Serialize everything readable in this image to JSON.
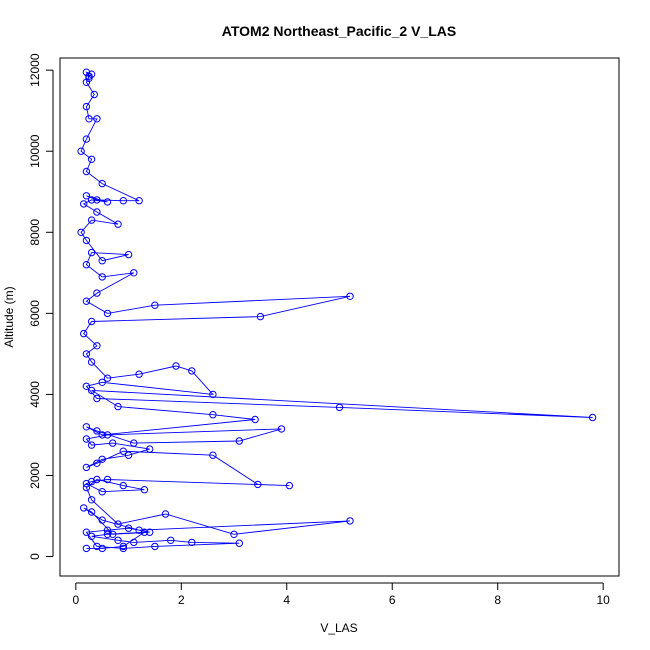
{
  "chart_data": {
    "type": "line",
    "title": "ATOM2 Northeast_Pacific_2 V_LAS",
    "xlabel": "V_LAS",
    "ylabel": "Altitude (m)",
    "xlim": [
      -0.3,
      10.3
    ],
    "ylim": [
      -480,
      12300
    ],
    "x_ticks": [
      0,
      2,
      4,
      6,
      8,
      10
    ],
    "y_ticks": [
      0,
      2000,
      4000,
      6000,
      8000,
      10000,
      12000
    ],
    "grid": false,
    "legend": "none",
    "series": [
      {
        "color": "#0000ff",
        "marker": "circle-open",
        "x": [
          0.2,
          0.5,
          0.9,
          1.3,
          0.6,
          0.3,
          0.8,
          1.1,
          1.8,
          2.2,
          3.1,
          1.5,
          0.9,
          0.4,
          0.2,
          0.6,
          1.0,
          1.4,
          0.7,
          0.3,
          0.15,
          0.5,
          1.2,
          5.2,
          3.0,
          1.7,
          0.8,
          0.3,
          0.2,
          0.4,
          0.9,
          1.3,
          0.5,
          0.2,
          0.3,
          0.6,
          4.05,
          3.45,
          2.6,
          0.9,
          0.4,
          0.2,
          0.5,
          1.0,
          1.4,
          0.7,
          0.3,
          0.2,
          0.6,
          3.9,
          3.1,
          1.1,
          0.4,
          0.2,
          0.5,
          3.4,
          2.6,
          0.8,
          0.3,
          9.8,
          5.0,
          0.4,
          0.2,
          0.5,
          2.6,
          2.2,
          1.9,
          1.2,
          0.6,
          0.3,
          0.2,
          0.4,
          0.15,
          0.3,
          3.5,
          5.2,
          1.5,
          0.6,
          0.2,
          0.4,
          1.1,
          0.5,
          0.2,
          0.3,
          1.0,
          0.5,
          0.2,
          0.1,
          0.3,
          0.8,
          0.4,
          0.15,
          0.3,
          0.6,
          0.2,
          0.4,
          0.9,
          1.2,
          0.5,
          0.2,
          0.3,
          0.1,
          0.2,
          0.4,
          0.25,
          0.2,
          0.35,
          0.2,
          0.25,
          0.3,
          0.2,
          0.25
        ],
        "y": [
          200,
          200,
          250,
          600,
          550,
          500,
          400,
          350,
          400,
          350,
          330,
          250,
          200,
          250,
          600,
          650,
          700,
          600,
          550,
          1100,
          1200,
          900,
          650,
          880,
          550,
          1050,
          800,
          1400,
          1700,
          1900,
          1750,
          1650,
          1600,
          1800,
          1850,
          1900,
          1750,
          1780,
          2500,
          2600,
          2300,
          2200,
          2400,
          2500,
          2650,
          2800,
          2750,
          2900,
          3000,
          3150,
          2850,
          2800,
          3100,
          3200,
          3000,
          3380,
          3500,
          3700,
          4100,
          3430,
          3680,
          3900,
          4200,
          4300,
          4000,
          4580,
          4700,
          4500,
          4400,
          4800,
          5000,
          5200,
          5500,
          5800,
          5920,
          6420,
          6200,
          6000,
          6300,
          6500,
          7000,
          6900,
          7200,
          7500,
          7450,
          7300,
          7800,
          8000,
          8300,
          8200,
          8500,
          8700,
          8800,
          8750,
          8900,
          8800,
          8780,
          8780,
          9200,
          9500,
          9800,
          10000,
          10300,
          10800,
          10800,
          11100,
          11400,
          11700,
          11850,
          11900,
          11950,
          11800
        ]
      }
    ]
  }
}
